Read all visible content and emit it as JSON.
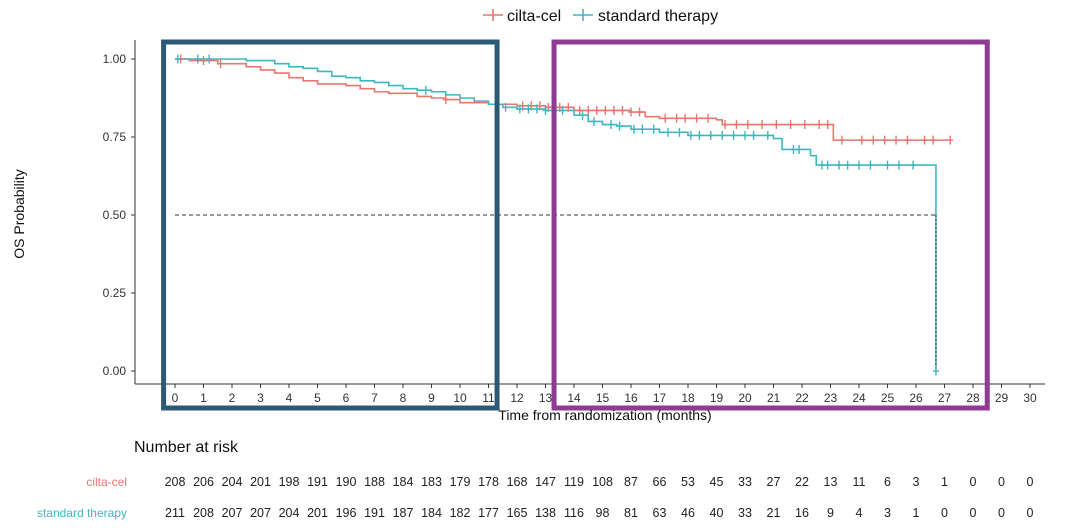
{
  "chart_data": {
    "type": "line",
    "subtype": "kaplan-meier",
    "xlabel": "Time from randomization (months)",
    "ylabel": "OS Probability",
    "xlim": [
      0,
      30
    ],
    "ylim": [
      0,
      1
    ],
    "x_ticks": [
      0,
      1,
      2,
      3,
      4,
      5,
      6,
      7,
      8,
      9,
      10,
      11,
      12,
      13,
      14,
      15,
      16,
      17,
      18,
      19,
      20,
      21,
      22,
      23,
      24,
      25,
      26,
      27,
      28,
      29,
      30
    ],
    "y_ticks": [
      0.0,
      0.25,
      0.5,
      0.75,
      1.0
    ],
    "y_tick_labels": [
      "0.00",
      "0.25",
      "0.50",
      "0.75",
      "1.00"
    ],
    "reference_line": {
      "y": 0.5,
      "style": "dashed"
    },
    "legend_position": "top-center",
    "series": [
      {
        "name": "cilta-cel",
        "color": "#E8766E",
        "steps": [
          [
            0,
            1.0
          ],
          [
            0.5,
            0.995
          ],
          [
            1.5,
            0.985
          ],
          [
            2.5,
            0.975
          ],
          [
            3.0,
            0.965
          ],
          [
            3.5,
            0.955
          ],
          [
            4.0,
            0.94
          ],
          [
            4.5,
            0.93
          ],
          [
            5.0,
            0.92
          ],
          [
            6.0,
            0.915
          ],
          [
            6.5,
            0.905
          ],
          [
            7.0,
            0.895
          ],
          [
            7.5,
            0.89
          ],
          [
            8.5,
            0.88
          ],
          [
            9.0,
            0.875
          ],
          [
            9.5,
            0.87
          ],
          [
            10.0,
            0.86
          ],
          [
            11.0,
            0.855
          ],
          [
            12.0,
            0.85
          ],
          [
            13.0,
            0.845
          ],
          [
            14.0,
            0.835
          ],
          [
            16.0,
            0.83
          ],
          [
            16.5,
            0.815
          ],
          [
            17.0,
            0.81
          ],
          [
            19.0,
            0.805
          ],
          [
            19.2,
            0.79
          ],
          [
            23.0,
            0.79
          ],
          [
            23.1,
            0.74
          ],
          [
            27.2,
            0.74
          ]
        ],
        "censor_times": [
          0.2,
          1.0,
          1.6,
          9.5,
          11.3,
          12.2,
          12.5,
          12.8,
          13.1,
          13.5,
          13.8,
          14.2,
          14.5,
          14.8,
          15.1,
          15.4,
          15.7,
          16.0,
          16.3,
          17.2,
          17.6,
          17.9,
          18.3,
          18.7,
          19.3,
          19.7,
          20.1,
          20.6,
          21.1,
          21.6,
          22.1,
          22.6,
          22.9,
          23.4,
          24.1,
          24.5,
          24.9,
          25.3,
          25.7,
          26.3,
          26.6,
          27.2
        ],
        "risk_counts": [
          208,
          206,
          204,
          201,
          198,
          191,
          190,
          188,
          184,
          183,
          179,
          178,
          168,
          147,
          119,
          108,
          87,
          66,
          53,
          45,
          33,
          27,
          22,
          13,
          11,
          6,
          3,
          1,
          0,
          0,
          0
        ]
      },
      {
        "name": "standard therapy",
        "color": "#3EB8C0",
        "steps": [
          [
            0,
            1.0
          ],
          [
            2.5,
            0.995
          ],
          [
            3.5,
            0.985
          ],
          [
            4.0,
            0.975
          ],
          [
            4.5,
            0.97
          ],
          [
            5.0,
            0.96
          ],
          [
            5.5,
            0.945
          ],
          [
            6.0,
            0.94
          ],
          [
            6.5,
            0.93
          ],
          [
            7.0,
            0.925
          ],
          [
            7.5,
            0.915
          ],
          [
            8.0,
            0.905
          ],
          [
            8.5,
            0.9
          ],
          [
            9.0,
            0.895
          ],
          [
            9.5,
            0.885
          ],
          [
            10.0,
            0.875
          ],
          [
            10.5,
            0.865
          ],
          [
            11.0,
            0.855
          ],
          [
            11.5,
            0.845
          ],
          [
            12.0,
            0.84
          ],
          [
            13.0,
            0.835
          ],
          [
            14.0,
            0.82
          ],
          [
            14.5,
            0.8
          ],
          [
            15.0,
            0.79
          ],
          [
            15.5,
            0.785
          ],
          [
            16.0,
            0.775
          ],
          [
            17.0,
            0.765
          ],
          [
            18.0,
            0.755
          ],
          [
            21.0,
            0.745
          ],
          [
            21.3,
            0.71
          ],
          [
            22.3,
            0.69
          ],
          [
            22.5,
            0.66
          ],
          [
            26.7,
            0.66
          ],
          [
            26.7,
            0.0
          ]
        ],
        "censor_times": [
          0.1,
          0.8,
          1.2,
          8.8,
          11.3,
          11.6,
          12.1,
          12.4,
          12.7,
          13.0,
          13.3,
          13.6,
          14.3,
          14.7,
          15.3,
          15.6,
          16.1,
          16.4,
          16.8,
          17.3,
          17.7,
          18.1,
          18.4,
          18.8,
          19.2,
          19.6,
          20.0,
          20.3,
          20.8,
          21.7,
          21.9,
          22.7,
          22.9,
          23.3,
          23.6,
          24.0,
          24.4,
          25.0,
          25.4,
          25.9,
          26.7
        ],
        "risk_counts": [
          211,
          208,
          207,
          207,
          204,
          201,
          196,
          191,
          187,
          184,
          182,
          177,
          165,
          138,
          116,
          98,
          81,
          63,
          46,
          40,
          33,
          21,
          16,
          9,
          4,
          3,
          1,
          0,
          0,
          0,
          0
        ]
      }
    ],
    "highlight_boxes": [
      {
        "x_from": -0.4,
        "x_to": 11.3,
        "color": "#2C5A75"
      },
      {
        "x_from": 13.3,
        "x_to": 28.5,
        "color": "#8E3B92"
      }
    ],
    "risk_table": {
      "title": "Number at risk",
      "times": [
        0,
        1,
        2,
        3,
        4,
        5,
        6,
        7,
        8,
        9,
        10,
        11,
        12,
        13,
        14,
        15,
        16,
        17,
        18,
        19,
        20,
        21,
        22,
        23,
        24,
        25,
        26,
        27,
        28,
        29,
        30
      ]
    }
  }
}
